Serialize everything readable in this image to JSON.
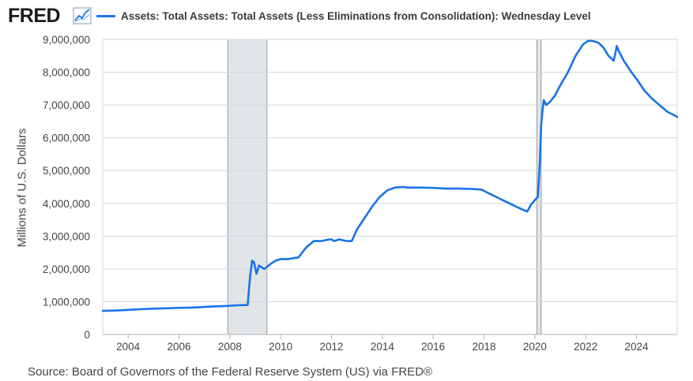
{
  "header": {
    "logo_text": "FRED",
    "series_title": "Assets: Total Assets: Total Assets (Less Eliminations from Consolidation): Wednesday Level"
  },
  "source_text": "Source: Board of Governors of the Federal Reserve System (US) via FRED®",
  "colors": {
    "series": "#1a73e8",
    "recession": "#e1e5e8",
    "grid": "#d6d6d6"
  },
  "chart_data": {
    "type": "line",
    "title": "Assets: Total Assets: Total Assets (Less Eliminations from Consolidation): Wednesday Level",
    "ylabel": "Millions of U.S. Dollars",
    "xlabel": "",
    "xlim": [
      2003.0,
      2025.6
    ],
    "ylim": [
      0,
      9000000
    ],
    "x_ticks": [
      2004,
      2006,
      2008,
      2010,
      2012,
      2014,
      2016,
      2018,
      2020,
      2022,
      2024
    ],
    "y_ticks": [
      0,
      1000000,
      2000000,
      3000000,
      4000000,
      5000000,
      6000000,
      7000000,
      8000000,
      9000000
    ],
    "y_tick_labels": [
      "0",
      "1,000,000",
      "2,000,000",
      "3,000,000",
      "4,000,000",
      "5,000,000",
      "6,000,000",
      "7,000,000",
      "8,000,000",
      "9,000,000"
    ],
    "grid": true,
    "recessions": [
      [
        2007.92,
        2009.46
      ],
      [
        2020.08,
        2020.25
      ]
    ],
    "series": [
      {
        "x": [
          2003.0,
          2003.5,
          2004.0,
          2004.5,
          2005.0,
          2005.5,
          2006.0,
          2006.5,
          2007.0,
          2007.5,
          2007.9,
          2008.3,
          2008.7,
          2008.8,
          2008.88,
          2008.95,
          2009.05,
          2009.15,
          2009.25,
          2009.35,
          2009.45,
          2009.6,
          2009.8,
          2010.0,
          2010.3,
          2010.7,
          2011.0,
          2011.3,
          2011.6,
          2011.9,
          2012.0,
          2012.1,
          2012.3,
          2012.6,
          2012.8,
          2013.0,
          2013.3,
          2013.6,
          2013.9,
          2014.2,
          2014.5,
          2014.8,
          2015.0,
          2015.5,
          2016.0,
          2016.5,
          2017.0,
          2017.5,
          2017.9,
          2018.2,
          2018.6,
          2019.0,
          2019.4,
          2019.7,
          2019.85,
          2020.0,
          2020.12,
          2020.2,
          2020.25,
          2020.3,
          2020.35,
          2020.45,
          2020.6,
          2020.8,
          2021.0,
          2021.3,
          2021.6,
          2021.9,
          2022.1,
          2022.3,
          2022.5,
          2022.7,
          2022.9,
          2023.1,
          2023.2,
          2023.22,
          2023.3,
          2023.5,
          2023.8,
          2024.0,
          2024.3,
          2024.6,
          2024.9,
          2025.2,
          2025.6
        ],
        "y": [
          720000,
          730000,
          750000,
          770000,
          790000,
          800000,
          810000,
          820000,
          840000,
          860000,
          870000,
          890000,
          900000,
          1800000,
          2250000,
          2200000,
          1850000,
          2100000,
          2050000,
          2000000,
          2050000,
          2150000,
          2250000,
          2300000,
          2300000,
          2350000,
          2650000,
          2850000,
          2850000,
          2900000,
          2900000,
          2850000,
          2900000,
          2850000,
          2850000,
          3200000,
          3550000,
          3900000,
          4200000,
          4400000,
          4480000,
          4500000,
          4480000,
          4480000,
          4470000,
          4450000,
          4450000,
          4440000,
          4420000,
          4300000,
          4150000,
          4000000,
          3850000,
          3750000,
          3960000,
          4100000,
          4200000,
          5300000,
          6400000,
          6800000,
          7150000,
          7000000,
          7100000,
          7300000,
          7600000,
          8000000,
          8500000,
          8850000,
          8960000,
          8950000,
          8900000,
          8750000,
          8500000,
          8350000,
          8700000,
          8800000,
          8650000,
          8350000,
          8000000,
          7800000,
          7450000,
          7200000,
          7000000,
          6800000,
          6640000
        ]
      }
    ]
  }
}
